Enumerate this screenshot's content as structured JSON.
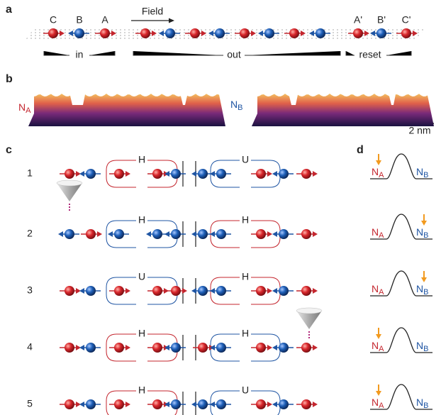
{
  "panels": {
    "a": "a",
    "b": "b",
    "c": "c",
    "d": "d"
  },
  "panel_a": {
    "atom_labels_left": [
      "C",
      "B",
      "A"
    ],
    "field": "Field",
    "atom_labels_right": [
      "A'",
      "B'",
      "C'"
    ],
    "segments": [
      "in",
      "out",
      "reset"
    ]
  },
  "panel_b": {
    "left_label": {
      "main": "N",
      "sub": "A"
    },
    "right_label": {
      "main": "N",
      "sub": "B"
    },
    "scale_bar": "2 nm"
  },
  "panel_c": {
    "rows": [
      {
        "number": "1",
        "left_gate": "H",
        "right_gate": "U"
      },
      {
        "number": "2",
        "left_gate": "H",
        "right_gate": "H"
      },
      {
        "number": "3",
        "left_gate": "U",
        "right_gate": "H"
      },
      {
        "number": "4",
        "left_gate": "H",
        "right_gate": "H"
      },
      {
        "number": "5",
        "left_gate": "H",
        "right_gate": "U"
      }
    ]
  },
  "panel_d": {
    "state_labels": [
      {
        "main": "N",
        "sub": "A"
      },
      {
        "main": "N",
        "sub": "B"
      }
    ]
  }
}
